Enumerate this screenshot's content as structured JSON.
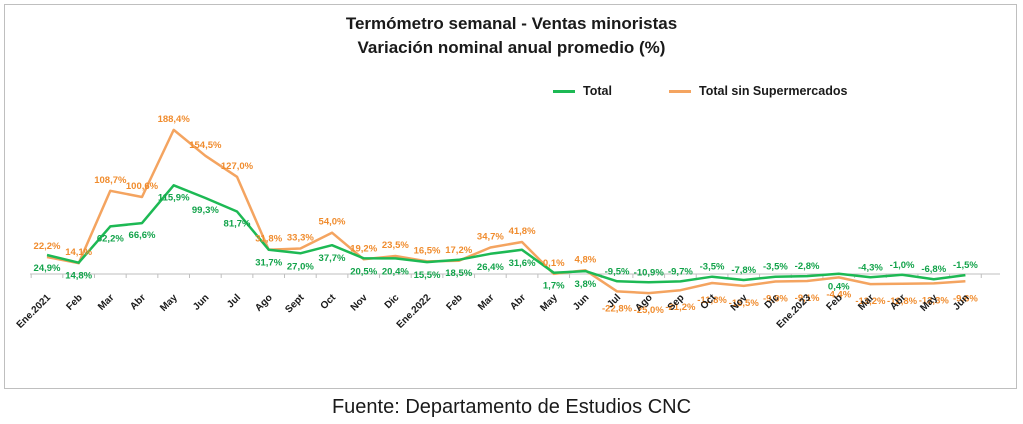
{
  "chart_data": {
    "type": "line",
    "title": "Termómetro semanal - Ventas minoristas",
    "subtitle": "Variación nominal anual promedio (%)",
    "categories": [
      "Ene.2021",
      "Feb",
      "Mar",
      "Abr",
      "May",
      "Jun",
      "Jul",
      "Ago",
      "Sept",
      "Oct",
      "Nov",
      "Dic",
      "Ene.2022",
      "Feb",
      "Mar",
      "Abr",
      "May",
      "Jun",
      "Jul",
      "Ago",
      "Sep",
      "Oct",
      "Nov",
      "Dic",
      "Ene.2023",
      "Feb",
      "Mar",
      "Abr",
      "May",
      "Jun"
    ],
    "series": [
      {
        "name": "Total",
        "color": "#1db954",
        "values": [
          24.9,
          14.8,
          62.2,
          66.6,
          115.9,
          99.3,
          81.7,
          31.7,
          27.0,
          37.7,
          20.5,
          20.4,
          15.5,
          18.5,
          26.4,
          31.6,
          1.7,
          3.8,
          -9.5,
          -10.9,
          -9.7,
          -3.5,
          -7.8,
          -3.5,
          -2.8,
          0.4,
          -4.3,
          -1.0,
          -6.8,
          -1.5
        ],
        "labels": [
          "24,9%",
          "14,8%",
          "62,2%",
          "66,6%",
          "115,9%",
          "99,3%",
          "81,7%",
          "31,7%",
          "27,0%",
          "37,7%",
          "20,5%",
          "20,4%",
          "15,5%",
          "18,5%",
          "26,4%",
          "31,6%",
          "1,7%",
          "3,8%",
          "-9,5%",
          "-10,9%",
          "-9,7%",
          "-3,5%",
          "-7,8%",
          "-3,5%",
          "-2,8%",
          "0,4%",
          "-4,3%",
          "-1,0%",
          "-6,8%",
          "-1,5%"
        ]
      },
      {
        "name": "Total sin Supermercados",
        "color": "#f4a460",
        "values": [
          22.2,
          14.1,
          108.7,
          100.6,
          188.4,
          154.5,
          127.0,
          31.8,
          33.3,
          54.0,
          19.2,
          23.5,
          16.5,
          17.2,
          34.7,
          41.8,
          0.1,
          4.8,
          -22.8,
          -25.0,
          -21.2,
          -11.8,
          -15.5,
          -9.8,
          -9.1,
          -4.4,
          -13.2,
          -12.8,
          -12.3,
          -9.6
        ],
        "labels": [
          "22,2%",
          "14,1%",
          "108,7%",
          "100,6%",
          "188,4%",
          "154,5%",
          "127,0%",
          "31,8%",
          "33,3%",
          "54,0%",
          "19,2%",
          "23,5%",
          "16,5%",
          "17,2%",
          "34,7%",
          "41,8%",
          "0,1%",
          "4,8%",
          "-22,8%",
          "-25,0%",
          "-21,2%",
          "-11,8%",
          "-15,5%",
          "-9,8%",
          "-9,1%",
          "-4,4%",
          "-13,2%",
          "-12,8%",
          "-12,3%",
          "-9,6%"
        ]
      }
    ],
    "ylim": [
      -60,
      220
    ],
    "grid": false,
    "legend_position": "top-right"
  },
  "source": "Fuente: Departamento de Estudios CNC"
}
